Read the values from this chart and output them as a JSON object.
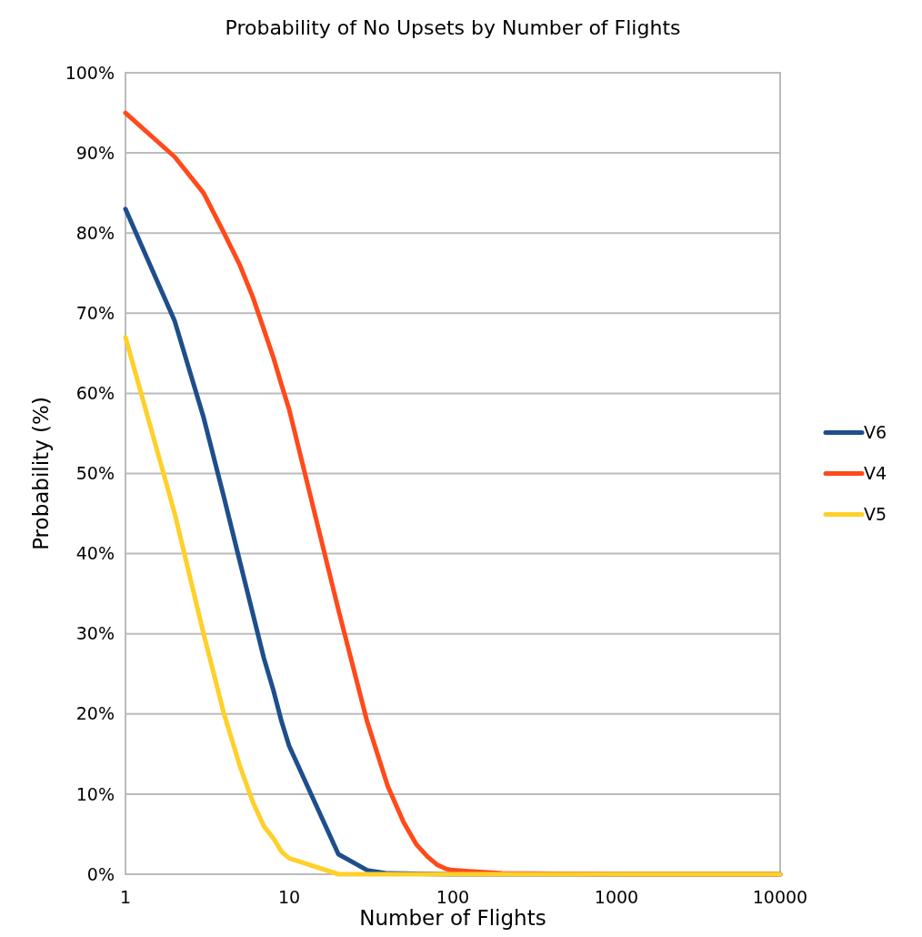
{
  "chart_data": {
    "type": "line",
    "title": "Probability of No Upsets by Number of Flights",
    "xlabel": "Number of Flights",
    "ylabel": "Probability (%)",
    "log": "x",
    "xlim": [
      1,
      10000
    ],
    "xticks": [
      1,
      10,
      100,
      1000,
      10000
    ],
    "ylim": [
      0,
      100
    ],
    "yticks": [
      {
        "value": 0,
        "label": "0%"
      },
      {
        "value": 10,
        "label": "10%"
      },
      {
        "value": 20,
        "label": "20%"
      },
      {
        "value": 30,
        "label": "30%"
      },
      {
        "value": 40,
        "label": "40%"
      },
      {
        "value": 50,
        "label": "50%"
      },
      {
        "value": 60,
        "label": "60%"
      },
      {
        "value": 70,
        "label": "70%"
      },
      {
        "value": 80,
        "label": "80%"
      },
      {
        "value": 90,
        "label": "90%"
      },
      {
        "value": 100,
        "label": "100%"
      }
    ],
    "grid": "y",
    "legend": "right",
    "marker": "none",
    "line_style": "solid",
    "series": [
      {
        "name": "V6",
        "color": "#1f4e8c",
        "x": [
          1,
          2,
          3,
          4,
          5,
          6,
          7,
          8,
          9,
          10,
          20,
          30,
          40,
          100,
          10000
        ],
        "values": [
          83,
          69,
          57,
          47,
          39,
          32.5,
          27,
          23,
          19,
          16,
          2.5,
          0.5,
          0.1,
          0,
          0
        ]
      },
      {
        "name": "V4",
        "color": "#ff4a1a",
        "x": [
          1,
          2,
          3,
          4,
          5,
          6,
          7,
          8,
          9,
          10,
          20,
          30,
          40,
          50,
          60,
          70,
          80,
          90,
          100,
          200,
          1000,
          10000
        ],
        "values": [
          95,
          89.5,
          85,
          80,
          76,
          72,
          68,
          64.5,
          61,
          58,
          33,
          19,
          11,
          6.5,
          3.7,
          2.2,
          1.2,
          0.7,
          0.5,
          0.1,
          0,
          0
        ]
      },
      {
        "name": "V5",
        "color": "#ffd02a",
        "x": [
          1,
          2,
          3,
          4,
          5,
          6,
          7,
          8,
          9,
          10,
          20,
          10000
        ],
        "values": [
          67,
          45,
          30,
          20,
          13.5,
          9,
          6,
          4.5,
          2.8,
          2,
          0,
          0
        ]
      }
    ]
  }
}
